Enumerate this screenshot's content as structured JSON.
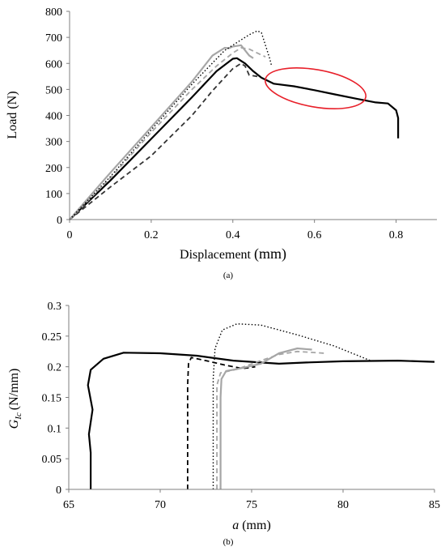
{
  "chart_data": [
    {
      "type": "line",
      "panel_label": "(a)",
      "xlabel": "Displacement",
      "xlabel_unit": "(mm)",
      "ylabel": "Load (N)",
      "xlim": [
        0,
        0.9
      ],
      "ylim": [
        0,
        800
      ],
      "xticks": [
        "0",
        "0.2",
        "0.4",
        "0.6",
        "0.8"
      ],
      "yticks": [
        "0",
        "100",
        "200",
        "300",
        "400",
        "500",
        "600",
        "700",
        "800"
      ],
      "grid": false,
      "annotation": "red ellipse around black curve, x 0.5–0.77",
      "annotation_color": "#e8202a",
      "series": [
        {
          "color": "#000000",
          "dash": "solid",
          "width": 2.2,
          "x": [
            0,
            0.1,
            0.2,
            0.3,
            0.36,
            0.4,
            0.41,
            0.43,
            0.45,
            0.47,
            0.5,
            0.55,
            0.6,
            0.65,
            0.7,
            0.75,
            0.78,
            0.8,
            0.805,
            0.805
          ],
          "y": [
            0,
            150,
            310,
            470,
            570,
            618,
            620,
            600,
            570,
            545,
            522,
            512,
            497,
            481,
            465,
            450,
            446,
            420,
            390,
            312
          ]
        },
        {
          "color": "#333333",
          "dash": "dashed",
          "width": 1.8,
          "x": [
            0,
            0.1,
            0.2,
            0.3,
            0.35,
            0.4,
            0.42,
            0.43,
            0.44,
            0.46
          ],
          "y": [
            0,
            125,
            245,
            400,
            495,
            580,
            600,
            590,
            555,
            550
          ]
        },
        {
          "color": "#a6a6a6",
          "dash": "solid",
          "width": 2.2,
          "x": [
            0,
            0.1,
            0.2,
            0.3,
            0.35,
            0.38,
            0.39,
            0.4,
            0.42,
            0.44,
            0.45
          ],
          "y": [
            0,
            180,
            355,
            530,
            630,
            660,
            658,
            665,
            670,
            630,
            620
          ]
        },
        {
          "color": "#a6a6a6",
          "dash": "dashed",
          "width": 1.8,
          "x": [
            0,
            0.1,
            0.2,
            0.3,
            0.36,
            0.4,
            0.42,
            0.44,
            0.46,
            0.48
          ],
          "y": [
            0,
            160,
            335,
            500,
            590,
            640,
            660,
            655,
            640,
            625
          ]
        },
        {
          "color": "#000000",
          "dash": "dotted",
          "width": 1.4,
          "x": [
            0,
            0.1,
            0.2,
            0.3,
            0.38,
            0.42,
            0.44,
            0.46,
            0.47,
            0.48,
            0.49,
            0.495
          ],
          "y": [
            0,
            165,
            345,
            520,
            650,
            690,
            710,
            725,
            718,
            670,
            620,
            590
          ]
        }
      ]
    },
    {
      "type": "line",
      "panel_label": "(b)",
      "xlabel_main": "a",
      "xlabel_unit": "(mm)",
      "ylabel_main": "G",
      "ylabel_sub": "Ic",
      "ylabel_unit": "(N/mm)",
      "xlim": [
        65,
        85
      ],
      "ylim": [
        0,
        0.3
      ],
      "xticks": [
        "65",
        "70",
        "75",
        "80",
        "85"
      ],
      "yticks": [
        "0",
        "0.05",
        "0.1",
        "0.15",
        "0.2",
        "0.25",
        "0.3"
      ],
      "grid": false,
      "series": [
        {
          "color": "#000000",
          "dash": "solid",
          "width": 2.2,
          "x": [
            66.2,
            66.2,
            66.1,
            66.3,
            66.05,
            66.2,
            66.9,
            68,
            70,
            72,
            74,
            76.5,
            78,
            80,
            83,
            85
          ],
          "y": [
            0,
            0.06,
            0.09,
            0.13,
            0.17,
            0.195,
            0.213,
            0.223,
            0.222,
            0.218,
            0.21,
            0.205,
            0.207,
            0.209,
            0.21,
            0.208
          ]
        },
        {
          "color": "#000000",
          "dash": "dashed",
          "width": 1.8,
          "x": [
            71.5,
            71.5,
            71.55,
            71.7,
            72.5,
            73.5,
            74.5,
            75.2
          ],
          "y": [
            0,
            0.17,
            0.205,
            0.215,
            0.21,
            0.203,
            0.197,
            0.2
          ]
        },
        {
          "color": "#000000",
          "dash": "dotted",
          "width": 1.4,
          "x": [
            72.9,
            72.9,
            73.0,
            73.4,
            74.2,
            75.5,
            77.5,
            79.5,
            81.5
          ],
          "y": [
            0,
            0.18,
            0.23,
            0.26,
            0.27,
            0.268,
            0.252,
            0.234,
            0.21
          ]
        },
        {
          "color": "#a6a6a6",
          "dash": "solid",
          "width": 2.2,
          "x": [
            73.3,
            73.3,
            73.35,
            73.6,
            74.5,
            75.5,
            76.5,
            77.5,
            78.3
          ],
          "y": [
            0,
            0.15,
            0.18,
            0.193,
            0.198,
            0.205,
            0.222,
            0.23,
            0.228
          ]
        },
        {
          "color": "#a6a6a6",
          "dash": "dashed",
          "width": 1.8,
          "x": [
            73.1,
            73.1,
            73.3,
            74.2,
            75.5,
            76.5,
            77.5,
            79
          ],
          "y": [
            0,
            0.17,
            0.19,
            0.196,
            0.21,
            0.22,
            0.225,
            0.222
          ]
        }
      ]
    }
  ]
}
